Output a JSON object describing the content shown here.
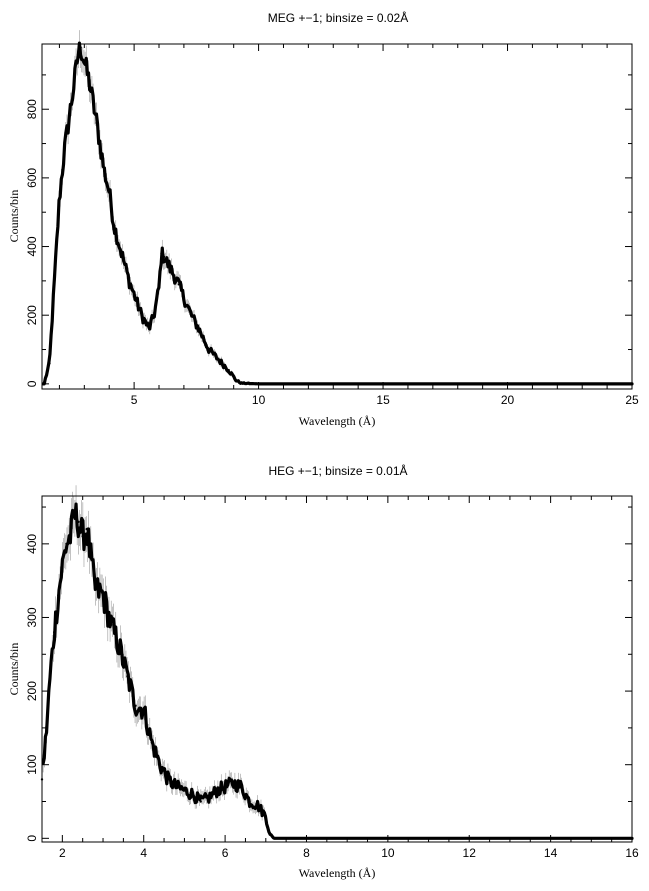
{
  "chart_data": [
    {
      "type": "line",
      "title": "MEG +−1; binsize = 0.02Å",
      "xlabel": "Wavelength (Å)",
      "ylabel": "Counts/bin",
      "xlim": [
        1.3,
        25
      ],
      "ylim": [
        -15,
        990
      ],
      "xticks": [
        5,
        10,
        15,
        20,
        25
      ],
      "yticks": [
        0,
        200,
        400,
        600,
        800
      ],
      "x_minor_step": 1,
      "y_minor_step": 100,
      "error_bars": true,
      "series": [
        {
          "x": [
            1.4,
            1.6,
            1.8,
            2.0,
            2.2,
            2.4,
            2.6,
            2.75,
            2.85,
            3.0,
            3.2,
            3.5,
            3.8,
            4.0,
            4.2,
            4.5,
            4.8,
            5.0,
            5.3,
            5.6,
            5.8,
            6.0,
            6.1,
            6.2,
            6.5,
            6.8,
            7.0,
            7.3,
            7.6,
            8.0,
            8.4,
            8.8,
            9.1,
            9.3,
            10,
            12,
            15,
            20,
            25
          ],
          "y": [
            5,
            60,
            300,
            540,
            680,
            780,
            880,
            960,
            980,
            940,
            880,
            760,
            620,
            560,
            460,
            380,
            300,
            260,
            200,
            160,
            200,
            280,
            380,
            370,
            330,
            290,
            250,
            200,
            160,
            100,
            70,
            40,
            10,
            2,
            0,
            0,
            0,
            0,
            0
          ]
        }
      ]
    },
    {
      "type": "line",
      "title": "HEG +−1; binsize = 0.01Å",
      "xlabel": "Wavelength (Å)",
      "ylabel": "Counts/bin",
      "xlim": [
        1.5,
        16
      ],
      "ylim": [
        -5,
        465
      ],
      "xticks": [
        2,
        4,
        6,
        8,
        10,
        12,
        14,
        16
      ],
      "yticks": [
        0,
        100,
        200,
        300,
        400
      ],
      "x_minor_step": 0.5,
      "y_minor_step": 50,
      "error_bars": true,
      "series": [
        {
          "x": [
            1.5,
            1.6,
            1.7,
            1.8,
            1.9,
            2.0,
            2.1,
            2.2,
            2.3,
            2.4,
            2.5,
            2.6,
            2.7,
            2.8,
            3.0,
            3.2,
            3.4,
            3.6,
            3.8,
            4.0,
            4.2,
            4.4,
            4.6,
            4.8,
            5.0,
            5.2,
            5.4,
            5.6,
            5.8,
            6.0,
            6.2,
            6.4,
            6.6,
            6.8,
            7.0,
            7.1,
            7.2,
            8,
            10,
            12,
            14,
            16
          ],
          "y": [
            80,
            140,
            220,
            280,
            330,
            370,
            400,
            410,
            440,
            430,
            410,
            420,
            380,
            340,
            330,
            290,
            260,
            220,
            180,
            175,
            130,
            100,
            80,
            70,
            65,
            60,
            50,
            55,
            65,
            70,
            75,
            70,
            50,
            45,
            30,
            5,
            0,
            0,
            0,
            0,
            0,
            0
          ]
        }
      ]
    }
  ]
}
